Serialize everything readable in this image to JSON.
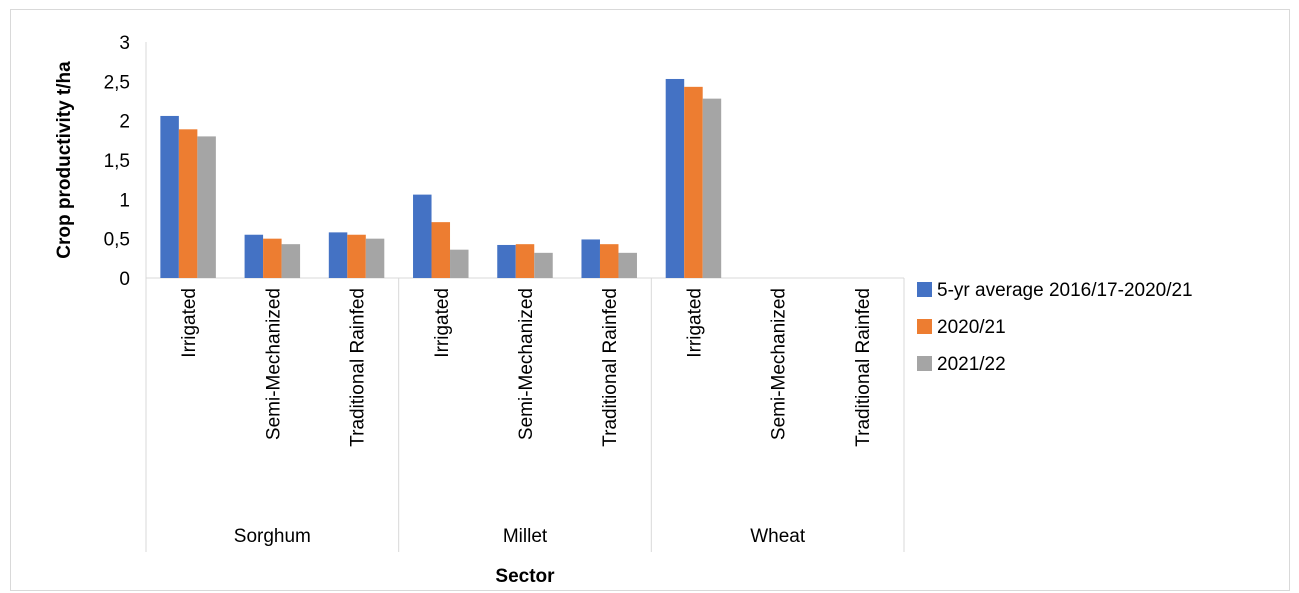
{
  "chart_data": {
    "type": "bar",
    "ylabel": "Crop productivity t/ha",
    "xlabel": "Sector",
    "ylim": [
      0,
      3
    ],
    "yticks": [
      "0",
      "0,5",
      "1",
      "1,5",
      "2",
      "2,5",
      "3"
    ],
    "ytick_values": [
      0,
      0.5,
      1,
      1.5,
      2,
      2.5,
      3
    ],
    "grid": false,
    "legend_position": "right",
    "groups": [
      {
        "name": "Sorghum",
        "categories": [
          "Irrigated",
          "Semi-Mechanized",
          "Traditional Rainfed"
        ]
      },
      {
        "name": "Millet",
        "categories": [
          "Irrigated",
          "Semi-Mechanized",
          "Traditional Rainfed"
        ]
      },
      {
        "name": "Wheat",
        "categories": [
          "Irrigated",
          "Semi-Mechanized",
          "Traditional Rainfed"
        ]
      }
    ],
    "series": [
      {
        "name": "5-yr average 2016/17-2020/21",
        "color": "#4472C4",
        "values": [
          2.06,
          0.55,
          0.58,
          1.06,
          0.42,
          0.49,
          2.53,
          0,
          0
        ]
      },
      {
        "name": "2020/21",
        "color": "#ED7D31",
        "values": [
          1.89,
          0.5,
          0.55,
          0.71,
          0.43,
          0.43,
          2.43,
          0,
          0
        ]
      },
      {
        "name": "2021/22",
        "color": "#A5A5A5",
        "values": [
          1.8,
          0.43,
          0.5,
          0.36,
          0.32,
          0.32,
          2.28,
          0,
          0
        ]
      }
    ]
  }
}
